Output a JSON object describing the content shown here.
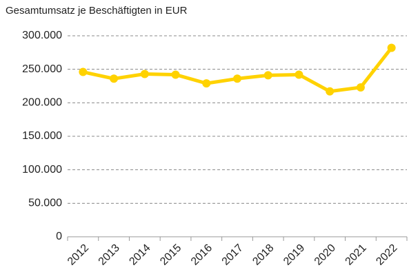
{
  "chart_data": {
    "type": "line",
    "title": "Gesamtumsatz je Beschäftigten in EUR",
    "categories": [
      "2012",
      "2013",
      "2014",
      "2015",
      "2016",
      "2017",
      "2018",
      "2019",
      "2020",
      "2021",
      "2022"
    ],
    "series": [
      {
        "name": "Gesamtumsatz je Beschäftigten",
        "color": "#ffd200",
        "values": [
          246000,
          236000,
          243000,
          242000,
          229000,
          236000,
          241000,
          242000,
          217000,
          223000,
          282000
        ]
      }
    ],
    "ylim": [
      0,
      300000
    ],
    "yticks": [
      0,
      {
        "value": 50000,
        "label": "50.000"
      },
      {
        "value": 100000,
        "label": "100.000"
      },
      {
        "value": 150000,
        "label": "150.000"
      },
      {
        "value": 200000,
        "label": "200.000"
      },
      {
        "value": 250000,
        "label": "250.000"
      },
      {
        "value": 300000,
        "label": "300.000"
      }
    ],
    "grid": true
  }
}
